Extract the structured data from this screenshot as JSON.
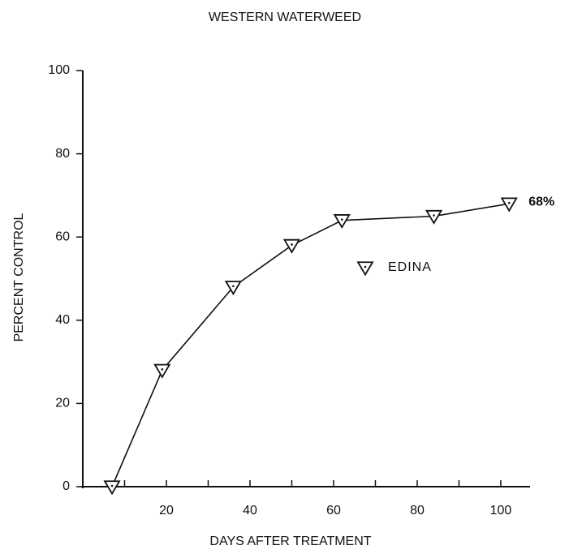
{
  "chart_data": {
    "type": "line",
    "title": "WESTERN WATERWEED",
    "xlabel": "DAYS AFTER TREATMENT",
    "ylabel": "PERCENT CONTROL",
    "x": [
      7,
      19,
      36,
      50,
      62,
      84,
      102
    ],
    "series": [
      {
        "name": "EDINA",
        "color": "#111111",
        "values": [
          0,
          28,
          48,
          58,
          64,
          65,
          68
        ],
        "value_labels": [
          null,
          null,
          null,
          null,
          null,
          null,
          "68%"
        ]
      }
    ],
    "xlim": [
      0,
      107
    ],
    "ylim": [
      0,
      100
    ],
    "xticks": [
      20,
      40,
      60,
      80,
      100
    ],
    "xminorticks": [
      10,
      30,
      50,
      70,
      90
    ],
    "yticks": [
      0,
      20,
      40,
      60,
      80,
      100
    ],
    "grid": false
  }
}
